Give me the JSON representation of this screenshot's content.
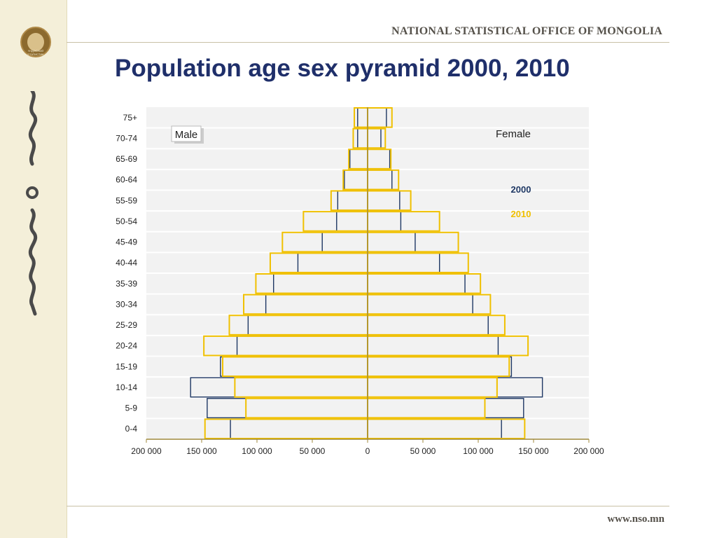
{
  "header": {
    "org_name": "NATIONAL STATISTICAL OFFICE OF MONGOLIA",
    "logo_text": "ҮНДЭСНИЙ СТАТИСТИК"
  },
  "title": "Population age sex pyramid 2000, 2010",
  "footer": {
    "url": "www.nso.mn"
  },
  "colors": {
    "year2000": "#1f3864",
    "year2010": "#f0c000",
    "axis": "#a08a3c",
    "plot_bg": "#f2f2f2"
  },
  "chart_data": {
    "type": "bar",
    "orientation": "horizontal",
    "variant": "population-pyramid",
    "categories": [
      "0-4",
      "5-9",
      "10-14",
      "15-19",
      "20-24",
      "25-29",
      "30-34",
      "35-39",
      "40-44",
      "45-49",
      "50-54",
      "55-59",
      "60-64",
      "65-69",
      "70-74",
      "75+"
    ],
    "sides": {
      "left": "Male",
      "right": "Female"
    },
    "series": [
      {
        "name": "2000",
        "male": [
          124000,
          145000,
          160000,
          133000,
          118000,
          108000,
          92000,
          85000,
          63000,
          41000,
          28000,
          27000,
          21000,
          16000,
          9000,
          9000
        ],
        "female": [
          121000,
          141000,
          158000,
          130000,
          118000,
          109000,
          95000,
          88000,
          65000,
          43000,
          30000,
          29000,
          22000,
          20000,
          12000,
          17000
        ]
      },
      {
        "name": "2010",
        "male": [
          147000,
          110000,
          120000,
          131000,
          148000,
          125000,
          112000,
          101000,
          88000,
          77000,
          58000,
          33000,
          22000,
          17000,
          13000,
          12000
        ],
        "female": [
          142000,
          106000,
          117000,
          128000,
          145000,
          124000,
          111000,
          102000,
          91000,
          82000,
          65000,
          39000,
          28000,
          21000,
          16000,
          22000
        ]
      }
    ],
    "x_ticks": [
      "200 000",
      "150 000",
      "100 000",
      "50 000",
      "0",
      "50 000",
      "100 000",
      "150 000",
      "200 000"
    ],
    "xlim": [
      -200000,
      200000
    ],
    "legend": [
      "2000",
      "2010"
    ],
    "grid": true
  }
}
